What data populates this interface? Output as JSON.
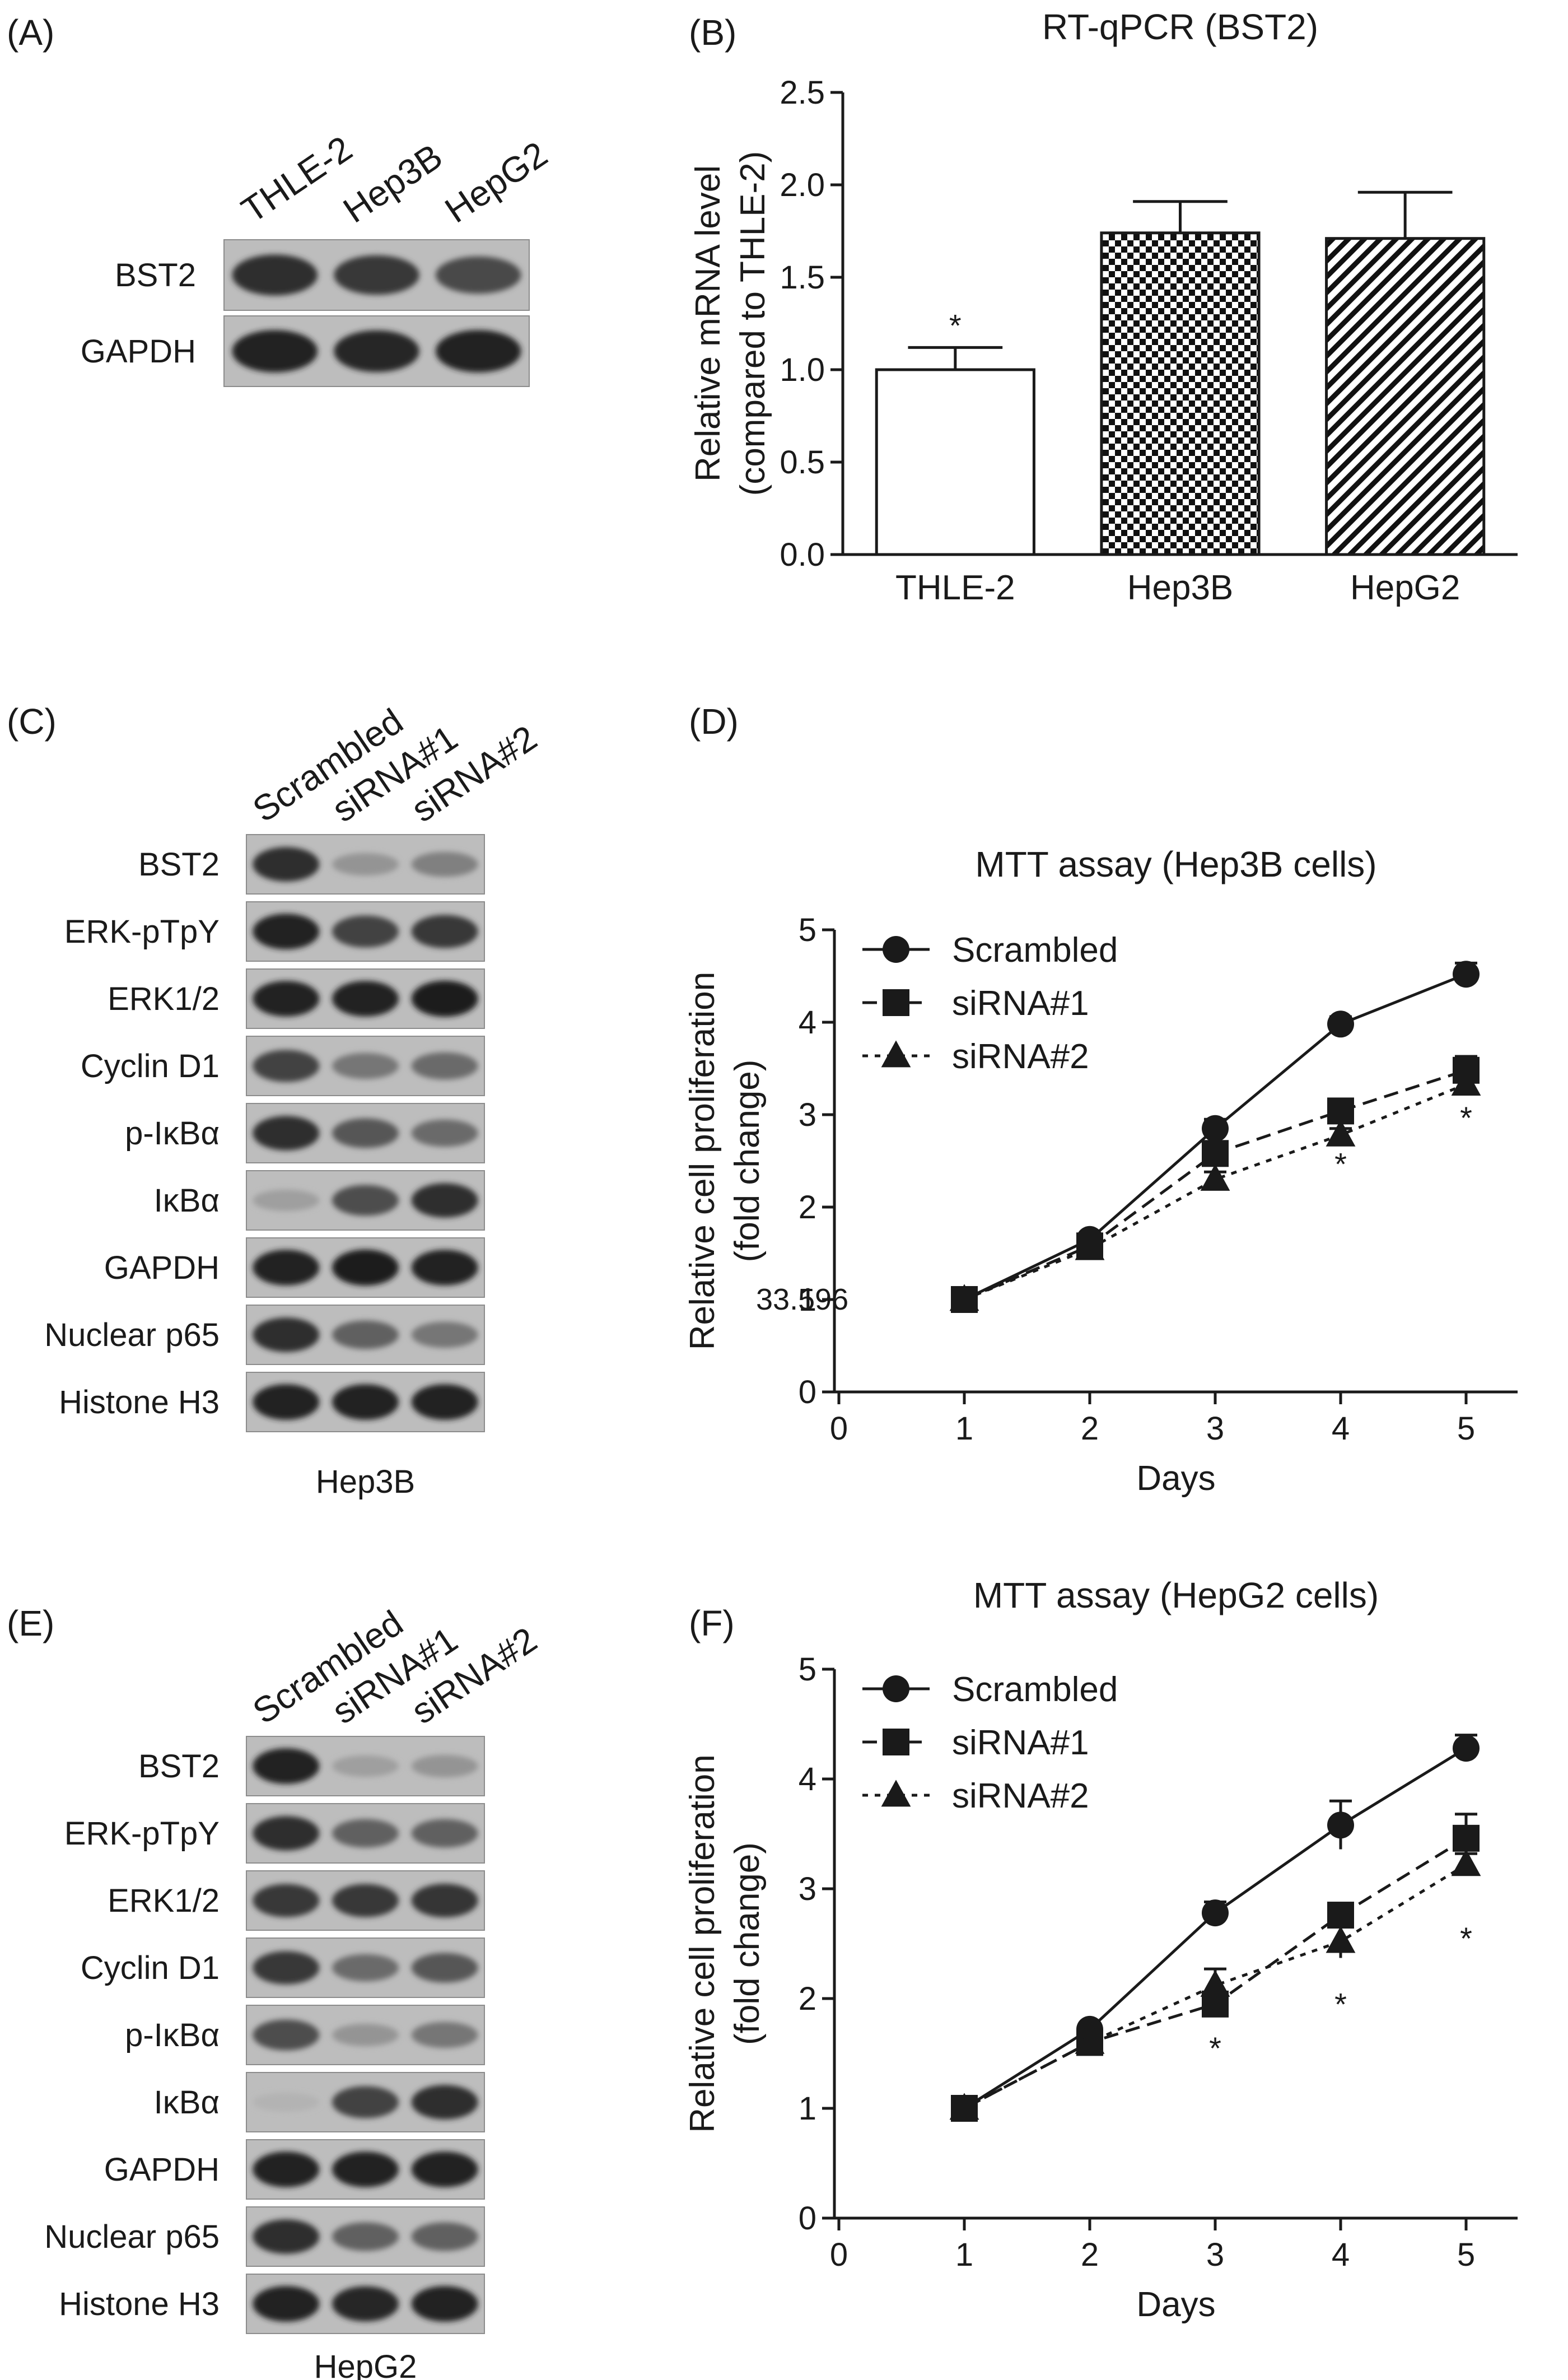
{
  "panels": [
    {
      "id": "A",
      "letter": "(A)",
      "columns": [
        "THLE-2",
        "Hep3B",
        "HepG2"
      ],
      "rows": [
        {
          "label": "BST2",
          "intensity": [
            0.85,
            0.8,
            0.72
          ]
        },
        {
          "label": "GAPDH",
          "intensity": [
            0.9,
            0.88,
            0.9
          ]
        }
      ]
    },
    {
      "id": "C",
      "letter": "(C)",
      "columns": [
        "Scrambled",
        "siRNA#1",
        "siRNA#2"
      ],
      "caption": "Hep3B",
      "rows": [
        {
          "label": "BST2",
          "intensity": [
            0.85,
            0.35,
            0.45
          ]
        },
        {
          "label": "ERK-pTpY",
          "intensity": [
            0.9,
            0.75,
            0.8
          ]
        },
        {
          "label": "ERK1/2",
          "intensity": [
            0.9,
            0.9,
            0.92
          ]
        },
        {
          "label": "Cyclin D1",
          "intensity": [
            0.75,
            0.5,
            0.55
          ]
        },
        {
          "label": "p-IκBα",
          "intensity": [
            0.85,
            0.65,
            0.55
          ]
        },
        {
          "label": "IκBα",
          "intensity": [
            0.3,
            0.7,
            0.85
          ]
        },
        {
          "label": "GAPDH",
          "intensity": [
            0.9,
            0.92,
            0.9
          ]
        },
        {
          "label": "Nuclear p65",
          "intensity": [
            0.85,
            0.6,
            0.5
          ]
        },
        {
          "label": "Histone H3",
          "intensity": [
            0.9,
            0.9,
            0.9
          ]
        }
      ]
    },
    {
      "id": "E",
      "letter": "(E)",
      "columns": [
        "Scrambled",
        "siRNA#1",
        "siRNA#2"
      ],
      "caption": "HepG2",
      "rows": [
        {
          "label": "BST2",
          "intensity": [
            0.9,
            0.3,
            0.35
          ]
        },
        {
          "label": "ERK-pTpY",
          "intensity": [
            0.85,
            0.6,
            0.6
          ]
        },
        {
          "label": "ERK1/2",
          "intensity": [
            0.8,
            0.8,
            0.82
          ]
        },
        {
          "label": "Cyclin D1",
          "intensity": [
            0.8,
            0.55,
            0.65
          ]
        },
        {
          "label": "p-IκBα",
          "intensity": [
            0.7,
            0.35,
            0.5
          ]
        },
        {
          "label": "IκBα",
          "intensity": [
            0.2,
            0.75,
            0.85
          ]
        },
        {
          "label": "GAPDH",
          "intensity": [
            0.9,
            0.9,
            0.9
          ]
        },
        {
          "label": "Nuclear p65",
          "intensity": [
            0.85,
            0.6,
            0.6
          ]
        },
        {
          "label": "Histone H3",
          "intensity": [
            0.9,
            0.88,
            0.9
          ]
        }
      ]
    }
  ],
  "chart_data": [
    {
      "id": "B",
      "letter": "(B)",
      "type": "bar",
      "title": "RT-qPCR (BST2)",
      "ylabel_line1": "Relative mRNA level",
      "ylabel_line2": "(compared to THLE-2)",
      "categories": [
        "THLE-2",
        "Hep3B",
        "HepG2"
      ],
      "values": [
        1.0,
        1.74,
        1.71
      ],
      "errors": [
        0.12,
        0.17,
        0.25
      ],
      "fills": [
        "open",
        "checker",
        "hatch"
      ],
      "ylim": [
        0.0,
        2.5
      ],
      "yticks": [
        "0.0",
        "0.5",
        "1.0",
        "1.5",
        "2.0",
        "2.5"
      ],
      "significance": [
        "*",
        "",
        ""
      ]
    },
    {
      "id": "D",
      "letter": "(D)",
      "type": "line",
      "title": "MTT assay (Hep3B cells)",
      "ylabel_line1": "Relative cell proliferation",
      "ylabel_line2": "(fold change)",
      "xlabel": "Days",
      "x": [
        1,
        2,
        3,
        4,
        5
      ],
      "xlim": [
        0,
        5
      ],
      "ylim": [
        0,
        5
      ],
      "xticks": [
        "0",
        "1",
        "2",
        "3",
        "4",
        "5"
      ],
      "yticks": [
        "0",
        "1",
        "2",
        "3",
        "4",
        "5"
      ],
      "annotation": "33.596",
      "series": [
        {
          "name": "Scrambled",
          "marker": "circle",
          "dash": "solid",
          "values": [
            1.0,
            1.65,
            2.85,
            3.98,
            4.52
          ],
          "errors": [
            0.03,
            0.05,
            0.1,
            0.08,
            0.12
          ]
        },
        {
          "name": "siRNA#1",
          "marker": "square",
          "dash": "dashed",
          "values": [
            1.0,
            1.58,
            2.58,
            3.04,
            3.48
          ],
          "errors": [
            0.03,
            0.05,
            0.1,
            0.07,
            0.15
          ]
        },
        {
          "name": "siRNA#2",
          "marker": "triangle",
          "dash": "dotted",
          "values": [
            1.0,
            1.55,
            2.3,
            2.78,
            3.33
          ],
          "errors": [
            0.03,
            0.05,
            0.08,
            0.07,
            0.08
          ]
        }
      ],
      "stars": [
        {
          "x": 4,
          "y": 2.35,
          "text": "*"
        },
        {
          "x": 5,
          "y": 2.85,
          "text": "*"
        }
      ]
    },
    {
      "id": "F",
      "letter": "(F)",
      "type": "line",
      "title": "MTT assay (HepG2 cells)",
      "ylabel_line1": "Relative cell proliferation",
      "ylabel_line2": "(fold change)",
      "xlabel": "Days",
      "x": [
        1,
        2,
        3,
        4,
        5
      ],
      "xlim": [
        0,
        5
      ],
      "ylim": [
        0,
        5
      ],
      "xticks": [
        "0",
        "1",
        "2",
        "3",
        "4",
        "5"
      ],
      "yticks": [
        "0",
        "1",
        "2",
        "3",
        "4",
        "5"
      ],
      "series": [
        {
          "name": "Scrambled",
          "marker": "circle",
          "dash": "solid",
          "values": [
            1.0,
            1.72,
            2.78,
            3.58,
            4.28
          ],
          "errors": [
            0.03,
            0.05,
            0.1,
            0.22,
            0.12
          ]
        },
        {
          "name": "siRNA#1",
          "marker": "square",
          "dash": "dashed",
          "values": [
            1.0,
            1.6,
            1.95,
            2.76,
            3.46
          ],
          "errors": [
            0.03,
            0.05,
            0.1,
            0.1,
            0.22
          ]
        },
        {
          "name": "siRNA#2",
          "marker": "triangle",
          "dash": "dotted",
          "values": [
            1.0,
            1.6,
            2.12,
            2.52,
            3.22
          ],
          "errors": [
            0.03,
            0.05,
            0.15,
            0.15,
            0.1
          ]
        }
      ],
      "stars": [
        {
          "x": 3,
          "y": 1.45,
          "text": "*"
        },
        {
          "x": 4,
          "y": 1.85,
          "text": "*"
        },
        {
          "x": 5,
          "y": 2.45,
          "text": "*"
        }
      ]
    }
  ]
}
